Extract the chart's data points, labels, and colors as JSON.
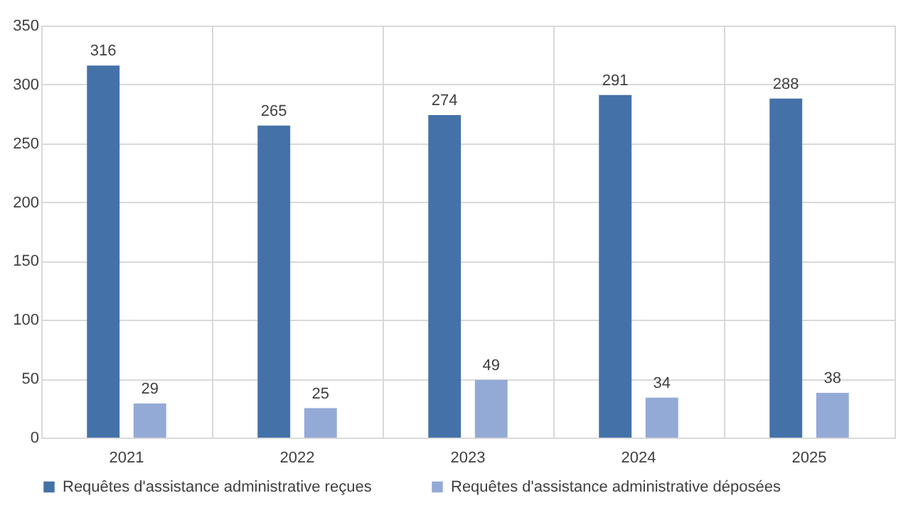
{
  "chart_data": {
    "type": "bar",
    "categories": [
      "2021",
      "2022",
      "2023",
      "2024",
      "2025"
    ],
    "series": [
      {
        "name": "Requêtes d'assistance administrative reçues",
        "color": "#4472a8",
        "values": [
          316,
          265,
          274,
          291,
          288
        ]
      },
      {
        "name": "Requêtes d'assistance administrative déposées",
        "color": "#94aad6",
        "values": [
          29,
          25,
          49,
          34,
          38
        ]
      }
    ],
    "ylim": [
      0,
      350
    ],
    "yticks": [
      0,
      50,
      100,
      150,
      200,
      250,
      300,
      350
    ],
    "grid": true,
    "legend": "bottom",
    "data_labels": true
  }
}
